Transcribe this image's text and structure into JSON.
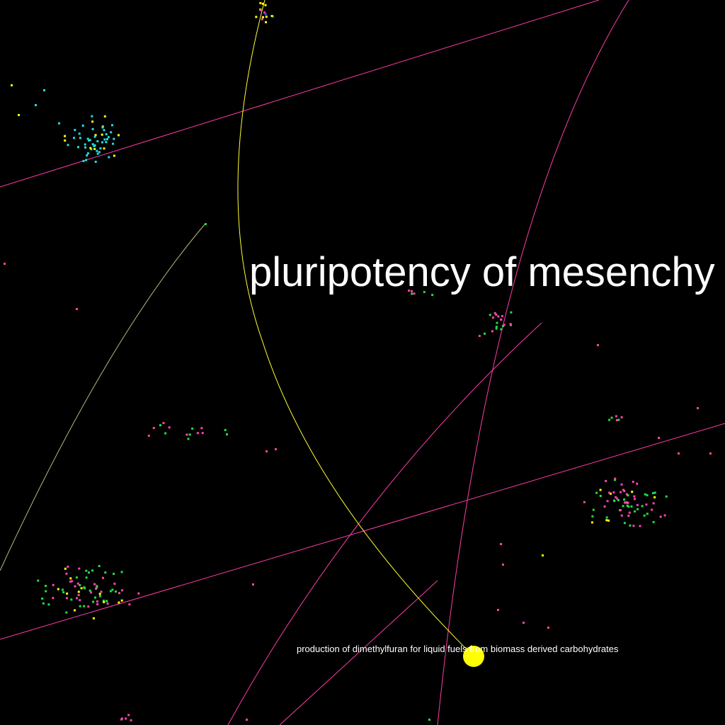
{
  "labels": {
    "topic_main": "pluripotency of mesenchy",
    "topic_selected": "production of dimethylfuran for liquid fuels from biomass derived carbohydrates"
  },
  "colors": {
    "background": "#000000",
    "edge_magenta": "#ff3ca8",
    "edge_yellow": "#ffff33",
    "edge_faint": "#b8b880",
    "node_magenta": "#ff44aa",
    "node_green": "#22dd44",
    "node_cyan": "#22dddd",
    "node_yellow": "#ffff00",
    "node_blue": "#4444ff",
    "selected_node": "#ffff00"
  }
}
